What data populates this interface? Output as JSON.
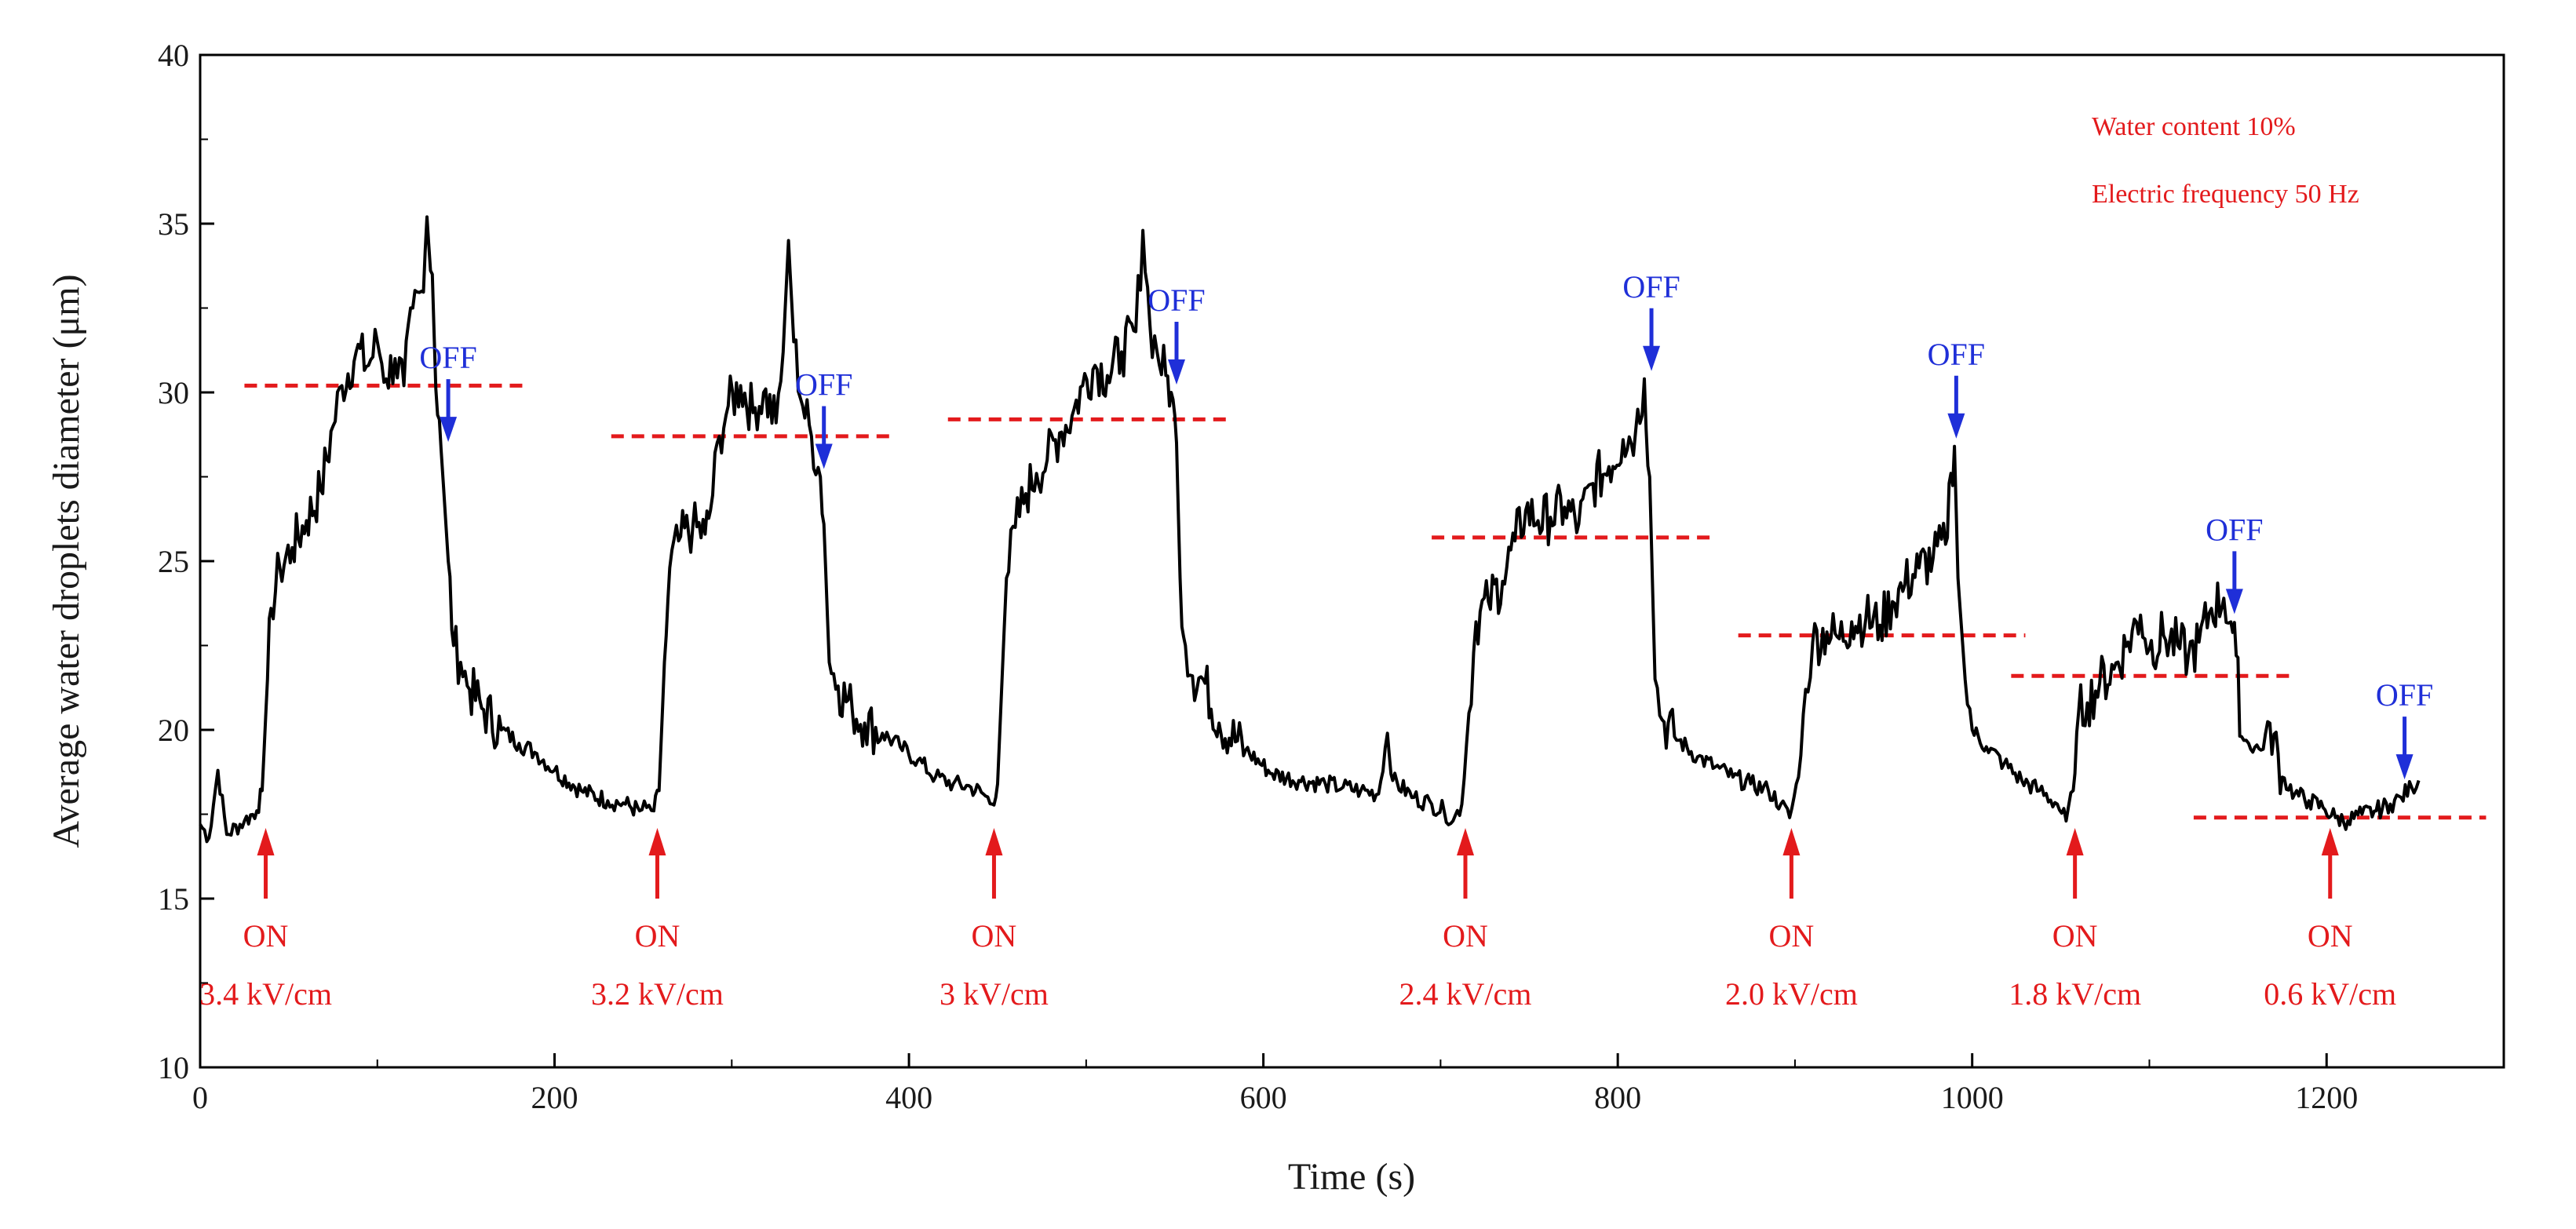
{
  "chart_data": {
    "type": "line",
    "title": "",
    "xlabel": "Time (s)",
    "ylabel": "Average water droplets diameter (μm)",
    "xlim": [
      0,
      1300
    ],
    "ylim": [
      10,
      40
    ],
    "xticks": [
      0,
      200,
      400,
      600,
      800,
      1000,
      1200
    ],
    "yticks": [
      10,
      15,
      20,
      25,
      30,
      35,
      40
    ],
    "xtick_labels": [
      "0",
      "200",
      "400",
      "600",
      "800",
      "1000",
      "1200"
    ],
    "ytick_labels": [
      "10",
      "15",
      "20",
      "25",
      "30",
      "35",
      "40"
    ],
    "grid": false,
    "series": [
      {
        "name": "Average water droplets diameter",
        "color": "#000000",
        "points": [
          [
            0,
            17.2
          ],
          [
            5,
            16.8
          ],
          [
            10,
            18.8
          ],
          [
            15,
            16.9
          ],
          [
            25,
            17.3
          ],
          [
            32,
            17.6
          ],
          [
            35,
            18.2
          ],
          [
            38,
            21.5
          ],
          [
            40,
            23.6
          ],
          [
            45,
            24.8
          ],
          [
            52,
            25.4
          ],
          [
            60,
            26.2
          ],
          [
            68,
            27.1
          ],
          [
            75,
            29.0
          ],
          [
            80,
            30.2
          ],
          [
            88,
            31.2
          ],
          [
            95,
            30.8
          ],
          [
            100,
            31.5
          ],
          [
            105,
            30.4
          ],
          [
            110,
            31.0
          ],
          [
            115,
            30.2
          ],
          [
            120,
            32.5
          ],
          [
            125,
            33.0
          ],
          [
            128,
            35.2
          ],
          [
            131,
            33.5
          ],
          [
            133,
            30.1
          ],
          [
            136,
            28.3
          ],
          [
            140,
            25.0
          ],
          [
            143,
            22.5
          ],
          [
            147,
            22.0
          ],
          [
            152,
            21.2
          ],
          [
            160,
            20.6
          ],
          [
            170,
            20.0
          ],
          [
            180,
            19.6
          ],
          [
            190,
            19.3
          ],
          [
            200,
            18.8
          ],
          [
            215,
            18.2
          ],
          [
            230,
            17.9
          ],
          [
            240,
            17.8
          ],
          [
            248,
            17.6
          ],
          [
            252,
            17.7
          ],
          [
            256,
            17.6
          ],
          [
            259,
            18.2
          ],
          [
            262,
            22.0
          ],
          [
            265,
            24.8
          ],
          [
            270,
            25.6
          ],
          [
            278,
            26.0
          ],
          [
            285,
            25.8
          ],
          [
            288,
            26.5
          ],
          [
            293,
            28.7
          ],
          [
            298,
            29.6
          ],
          [
            305,
            30.2
          ],
          [
            312,
            29.4
          ],
          [
            318,
            30.0
          ],
          [
            325,
            29.1
          ],
          [
            329,
            31.2
          ],
          [
            332,
            34.5
          ],
          [
            335,
            31.5
          ],
          [
            340,
            29.6
          ],
          [
            345,
            28.7
          ],
          [
            350,
            27.5
          ],
          [
            352,
            26.1
          ],
          [
            355,
            22.0
          ],
          [
            360,
            21.3
          ],
          [
            368,
            20.6
          ],
          [
            375,
            20.2
          ],
          [
            385,
            19.9
          ],
          [
            395,
            19.5
          ],
          [
            405,
            19.1
          ],
          [
            415,
            18.6
          ],
          [
            425,
            18.4
          ],
          [
            435,
            18.3
          ],
          [
            442,
            18.1
          ],
          [
            447,
            17.8
          ],
          [
            450,
            18.4
          ],
          [
            455,
            24.5
          ],
          [
            460,
            26.0
          ],
          [
            466,
            27.0
          ],
          [
            472,
            27.6
          ],
          [
            478,
            28.0
          ],
          [
            485,
            28.8
          ],
          [
            492,
            29.3
          ],
          [
            498,
            30.2
          ],
          [
            505,
            30.8
          ],
          [
            512,
            30.5
          ],
          [
            520,
            31.2
          ],
          [
            528,
            31.8
          ],
          [
            532,
            34.8
          ],
          [
            536,
            32.0
          ],
          [
            540,
            31.2
          ],
          [
            545,
            30.5
          ],
          [
            548,
            30.0
          ],
          [
            551,
            28.5
          ],
          [
            553,
            24.5
          ],
          [
            556,
            22.5
          ],
          [
            560,
            21.6
          ],
          [
            566,
            21.5
          ],
          [
            575,
            20.2
          ],
          [
            590,
            19.4
          ],
          [
            605,
            18.7
          ],
          [
            620,
            18.5
          ],
          [
            635,
            18.4
          ],
          [
            645,
            18.3
          ],
          [
            655,
            18.2
          ],
          [
            665,
            18.1
          ],
          [
            670,
            19.9
          ],
          [
            673,
            18.5
          ],
          [
            685,
            18.0
          ],
          [
            695,
            17.8
          ],
          [
            702,
            17.6
          ],
          [
            707,
            17.3
          ],
          [
            712,
            17.8
          ],
          [
            716,
            20.5
          ],
          [
            720,
            23.2
          ],
          [
            727,
            23.8
          ],
          [
            735,
            24.4
          ],
          [
            742,
            25.6
          ],
          [
            748,
            26.5
          ],
          [
            755,
            26.2
          ],
          [
            762,
            26.3
          ],
          [
            770,
            26.6
          ],
          [
            778,
            26.1
          ],
          [
            786,
            27.3
          ],
          [
            795,
            27.8
          ],
          [
            803,
            28.6
          ],
          [
            810,
            28.8
          ],
          [
            815,
            30.4
          ],
          [
            818,
            27.5
          ],
          [
            821,
            21.5
          ],
          [
            825,
            20.3
          ],
          [
            832,
            19.8
          ],
          [
            845,
            19.2
          ],
          [
            855,
            18.9
          ],
          [
            865,
            18.6
          ],
          [
            875,
            18.4
          ],
          [
            885,
            18.2
          ],
          [
            892,
            17.8
          ],
          [
            897,
            17.4
          ],
          [
            902,
            18.6
          ],
          [
            906,
            21.2
          ],
          [
            910,
            22.6
          ],
          [
            918,
            22.9
          ],
          [
            925,
            22.7
          ],
          [
            932,
            23.2
          ],
          [
            940,
            23.3
          ],
          [
            948,
            23.1
          ],
          [
            955,
            23.8
          ],
          [
            962,
            24.3
          ],
          [
            970,
            24.8
          ],
          [
            978,
            25.1
          ],
          [
            985,
            25.5
          ],
          [
            988,
            27.6
          ],
          [
            990,
            28.4
          ],
          [
            992,
            24.5
          ],
          [
            996,
            21.5
          ],
          [
            1000,
            20.0
          ],
          [
            1008,
            19.5
          ],
          [
            1018,
            19.0
          ],
          [
            1028,
            18.5
          ],
          [
            1038,
            18.2
          ],
          [
            1048,
            17.8
          ],
          [
            1053,
            17.3
          ],
          [
            1057,
            18.2
          ],
          [
            1060,
            20.5
          ],
          [
            1065,
            20.8
          ],
          [
            1072,
            21.4
          ],
          [
            1080,
            21.8
          ],
          [
            1088,
            22.6
          ],
          [
            1095,
            23.4
          ],
          [
            1100,
            22.4
          ],
          [
            1108,
            22.8
          ],
          [
            1116,
            22.5
          ],
          [
            1122,
            22.2
          ],
          [
            1128,
            22.6
          ],
          [
            1135,
            23.6
          ],
          [
            1142,
            23.9
          ],
          [
            1146,
            23.2
          ],
          [
            1149,
            22.2
          ],
          [
            1152,
            19.8
          ],
          [
            1156,
            19.6
          ],
          [
            1163,
            19.4
          ],
          [
            1168,
            20.2
          ],
          [
            1175,
            18.6
          ],
          [
            1182,
            18.1
          ],
          [
            1190,
            17.9
          ],
          [
            1198,
            17.7
          ],
          [
            1205,
            17.4
          ],
          [
            1212,
            17.3
          ],
          [
            1220,
            17.5
          ],
          [
            1228,
            17.6
          ],
          [
            1236,
            17.8
          ],
          [
            1242,
            18.0
          ],
          [
            1248,
            18.3
          ],
          [
            1252,
            18.5
          ]
        ]
      }
    ],
    "reference_lines": [
      {
        "x_start": 25,
        "x_end": 185,
        "y": 30.2
      },
      {
        "x_start": 232,
        "x_end": 390,
        "y": 28.7
      },
      {
        "x_start": 422,
        "x_end": 582,
        "y": 29.2
      },
      {
        "x_start": 695,
        "x_end": 855,
        "y": 25.7
      },
      {
        "x_start": 868,
        "x_end": 1030,
        "y": 22.8
      },
      {
        "x_start": 1022,
        "x_end": 1180,
        "y": 21.6
      },
      {
        "x_start": 1125,
        "x_end": 1290,
        "y": 17.4
      }
    ],
    "on_markers": [
      {
        "x": 37,
        "on_label": "ON",
        "field_label": "3.4 kV/cm"
      },
      {
        "x": 258,
        "on_label": "ON",
        "field_label": "3.2 kV/cm"
      },
      {
        "x": 448,
        "on_label": "ON",
        "field_label": "3 kV/cm"
      },
      {
        "x": 714,
        "on_label": "ON",
        "field_label": "2.4 kV/cm"
      },
      {
        "x": 898,
        "on_label": "ON",
        "field_label": "2.0 kV/cm"
      },
      {
        "x": 1058,
        "on_label": "ON",
        "field_label": "1.8 kV/cm"
      },
      {
        "x": 1202,
        "on_label": "ON",
        "field_label": "0.6 kV/cm"
      }
    ],
    "off_markers": [
      {
        "x": 140,
        "label": "OFF"
      },
      {
        "x": 352,
        "label": "OFF"
      },
      {
        "x": 551,
        "label": "OFF"
      },
      {
        "x": 819,
        "label": "OFF"
      },
      {
        "x": 991,
        "label": "OFF"
      },
      {
        "x": 1148,
        "label": "OFF"
      },
      {
        "x": 1244,
        "label": "OFF"
      }
    ],
    "annotations": [
      {
        "text": "Water content 10%",
        "position": "top-right"
      },
      {
        "text": "Electric frequency 50 Hz",
        "position": "top-right"
      }
    ],
    "colors": {
      "line": "#000000",
      "reference": "#e31a1c",
      "on": "#e31a1c",
      "off": "#1f2fd8"
    }
  }
}
